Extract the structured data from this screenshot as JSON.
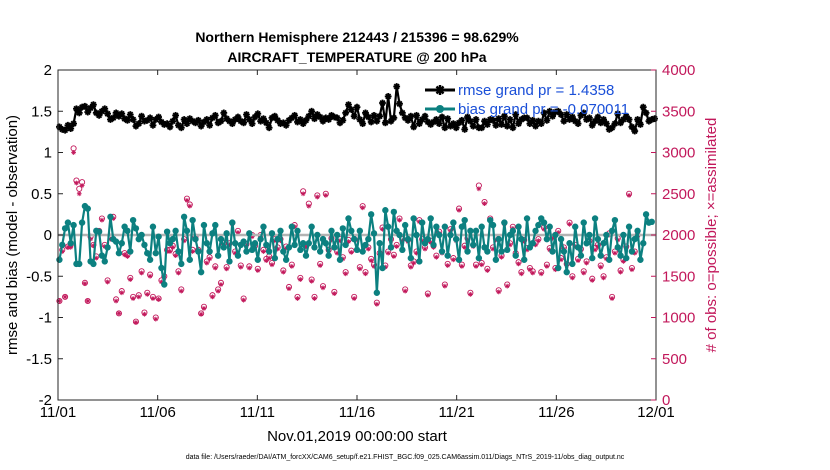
{
  "chart_data": {
    "type": "line",
    "title_line1": "Northern Hemisphere 212443 / 215396 = 98.629%",
    "title_line2": "AIRCRAFT_TEMPERATURE @ 200 hPa",
    "xlabel": "Nov.01,2019 00:00:00 start",
    "ylabel_left": "rmse and bias (model - observation)",
    "ylabel_right": "# of obs: o=possible; ×=assimilated",
    "xlim": [
      0,
      30
    ],
    "ylim_left": [
      -2,
      2
    ],
    "ylim_right": [
      0,
      4000
    ],
    "x_ticks": [
      0,
      5,
      10,
      15,
      20,
      25,
      30
    ],
    "x_tick_labels": [
      "11/01",
      "11/06",
      "11/11",
      "11/16",
      "11/21",
      "11/26",
      "12/01"
    ],
    "y_ticks_left": [
      -2,
      -1.5,
      -1,
      -0.5,
      0,
      0.5,
      1,
      1.5,
      2
    ],
    "y_tick_labels_left": [
      "-2",
      "-1.5",
      "-1",
      "-0.5",
      "0",
      "0.5",
      "1",
      "1.5",
      "2"
    ],
    "y_ticks_right": [
      0,
      500,
      1000,
      1500,
      2000,
      2500,
      3000,
      3500,
      4000
    ],
    "y_tick_labels_right": [
      "0",
      "500",
      "1000",
      "1500",
      "2000",
      "2500",
      "3000",
      "3500",
      "4000"
    ],
    "zero_line": 0,
    "legend": [
      {
        "name": "rmse grand pr = 1.4358",
        "color": "#000000"
      },
      {
        "name": "bias grand pr = -0.070011",
        "color": "#0c8080"
      }
    ],
    "rmse": [
      1.31,
      1.28,
      1.27,
      1.33,
      1.29,
      1.35,
      1.53,
      1.48,
      1.55,
      1.56,
      1.49,
      1.54,
      1.58,
      1.48,
      1.45,
      1.5,
      1.53,
      1.47,
      1.4,
      1.42,
      1.48,
      1.44,
      1.47,
      1.41,
      1.39,
      1.46,
      1.4,
      1.32,
      1.35,
      1.44,
      1.38,
      1.39,
      1.42,
      1.33,
      1.4,
      1.43,
      1.37,
      1.34,
      1.35,
      1.31,
      1.38,
      1.45,
      1.33,
      1.3,
      1.4,
      1.35,
      1.41,
      1.38,
      1.36,
      1.39,
      1.32,
      1.37,
      1.4,
      1.33,
      1.42,
      1.45,
      1.36,
      1.38,
      1.48,
      1.41,
      1.38,
      1.35,
      1.4,
      1.43,
      1.38,
      1.36,
      1.46,
      1.4,
      1.35,
      1.43,
      1.47,
      1.38,
      1.41,
      1.36,
      1.3,
      1.42,
      1.44,
      1.39,
      1.35,
      1.36,
      1.33,
      1.39,
      1.42,
      1.45,
      1.37,
      1.4,
      1.35,
      1.39,
      1.44,
      1.5,
      1.41,
      1.46,
      1.43,
      1.38,
      1.42,
      1.4,
      1.45,
      1.43,
      1.42,
      1.36,
      1.39,
      1.48,
      1.58,
      1.52,
      1.44,
      1.55,
      1.4,
      1.35,
      1.48,
      1.43,
      1.37,
      1.45,
      1.38,
      1.44,
      1.6,
      1.36,
      1.68,
      1.38,
      1.42,
      1.8,
      1.59,
      1.48,
      1.42,
      1.39,
      1.44,
      1.31,
      1.45,
      1.35,
      1.4,
      1.44,
      1.37,
      1.34,
      1.37,
      1.4,
      1.35,
      1.43,
      1.3,
      1.41,
      1.32,
      1.35,
      1.3,
      1.36,
      1.39,
      1.28,
      1.43,
      1.38,
      1.32,
      1.4,
      1.3,
      1.3,
      1.38,
      1.34,
      1.4,
      1.39,
      1.33,
      1.41,
      1.34,
      1.44,
      1.32,
      1.4,
      1.3,
      1.46,
      1.35,
      1.4,
      1.42,
      1.42,
      1.35,
      1.39,
      1.32,
      1.38,
      1.35,
      1.48,
      1.39,
      1.5,
      1.44,
      1.49,
      1.5,
      1.46,
      1.38,
      1.46,
      1.4,
      1.43,
      1.38,
      1.35,
      1.45,
      1.48,
      1.4,
      1.42,
      1.33,
      1.38,
      1.43,
      1.36,
      1.4,
      1.35,
      1.28,
      1.3,
      1.35,
      1.47,
      1.36,
      1.4,
      1.44,
      1.4,
      1.31,
      1.26,
      1.4,
      1.34,
      1.55,
      1.48,
      1.38,
      1.4,
      1.41
    ],
    "bias": [
      -0.3,
      -0.12,
      0.08,
      0.15,
      -0.1,
      0.12,
      -0.35,
      -0.35,
      0.15,
      0.35,
      0.32,
      -0.32,
      -0.35,
      0.05,
      0.04,
      -0.25,
      -0.32,
      -0.15,
      0.22,
      -0.05,
      -0.08,
      -0.22,
      -0.1,
      0.1,
      0.05,
      -0.2,
      0.18,
      0.08,
      -0.05,
      0.0,
      -0.12,
      -0.22,
      -0.3,
      0.1,
      -0.22,
      -0.02,
      -0.4,
      -0.6,
      0.04,
      -0.1,
      -0.05,
      0.05,
      -0.2,
      -0.35,
      0.22,
      0.05,
      -0.3,
      0.18,
      -0.05,
      -0.2,
      -0.45,
      0.12,
      -0.1,
      -0.2,
      0.02,
      0.12,
      -0.25,
      -0.05,
      -0.15,
      0.02,
      -0.32,
      0.15,
      -0.1,
      -0.25,
      -0.12,
      -0.08,
      -0.2,
      0.02,
      -0.18,
      -0.1,
      -0.3,
      -0.05,
      0.1,
      -0.12,
      -0.2,
      0.02,
      -0.28,
      -0.05,
      0.05,
      -0.2,
      -0.3,
      -0.15,
      0.1,
      -0.12,
      0.05,
      -0.18,
      -0.1,
      -0.25,
      -0.1,
      0.1,
      -0.15,
      0.0,
      -0.2,
      -0.05,
      -0.1,
      -0.25,
      0.05,
      -0.15,
      0.0,
      -0.3,
      0.08,
      -0.12,
      0.2,
      0.05,
      -0.05,
      -0.18,
      0.05,
      -0.2,
      -0.12,
      -0.05,
      0.25,
      0.02,
      -0.7,
      -0.1,
      -0.4,
      0.3,
      0.1,
      -0.15,
      0.28,
      0.05,
      0.0,
      -0.18,
      0.12,
      -0.05,
      -0.28,
      0.2,
      0.0,
      -0.32,
      0.15,
      -0.1,
      -0.05,
      0.2,
      -0.12,
      0.1,
      0.0,
      -0.2,
      0.1,
      -0.25,
      0.0,
      0.15,
      -0.05,
      -0.3,
      0.1,
      0.18,
      -0.2,
      0.05,
      -0.12,
      0.05,
      -0.28,
      0.1,
      -0.15,
      -0.2,
      0.18,
      0.12,
      -0.3,
      -0.05,
      -0.2,
      0.15,
      -0.18,
      0.0,
      0.05,
      -0.25,
      0.1,
      -0.05,
      -0.3,
      0.2,
      -0.15,
      -0.1,
      0.05,
      0.12,
      0.2,
      0.15,
      -0.05,
      0.1,
      -0.2,
      0.0,
      -0.4,
      -0.05,
      -0.2,
      -0.45,
      -0.1,
      -0.35,
      0.1,
      -0.15,
      -0.25,
      0.15,
      -0.1,
      0.0,
      -0.28,
      0.2,
      -0.05,
      -0.25,
      -0.1,
      0.0,
      -0.3,
      0.05,
      0.18,
      -0.15,
      -0.25,
      0.0,
      -0.28,
      0.1,
      -0.2,
      -0.05,
      0.05,
      -0.3,
      -0.1,
      0.25,
      0.15,
      0.16
    ],
    "obs_possible": [
      1200,
      1820,
      1250,
      1860,
      1880,
      3050,
      2660,
      2560,
      2640,
      1420,
      1200,
      1980,
      1880,
      1740,
      2050,
      2200,
      1880,
      1450,
      1980,
      2220,
      1220,
      1050,
      1320,
      1780,
      1760,
      1480,
      1250,
      950,
      1270,
      1560,
      1060,
      1300,
      1520,
      1250,
      1000,
      1230,
      1450,
      1500,
      1820,
      1820,
      1870,
      1770,
      1560,
      1340,
      1950,
      2440,
      2370,
      1820,
      1980,
      1820,
      1050,
      1130,
      1680,
      1730,
      1270,
      1620,
      1340,
      1420,
      1900,
      1610,
      1900,
      2150,
      1800,
      2050,
      1630,
      1230,
      1890,
      1620,
      2000,
      1870,
      1590,
      2000,
      1820,
      1710,
      1740,
      1660,
      1950,
      1850,
      1950,
      1570,
      1860,
      1370,
      1640,
      2120,
      1250,
      1480,
      2530,
      1880,
      2380,
      1460,
      1250,
      2480,
      1650,
      1380,
      2500,
      1820,
      1960,
      1310,
      1800,
      1950,
      1730,
      1550,
      1940,
      1810,
      1250,
      1960,
      1610,
      2350,
      1550,
      1850,
      1710,
      1640,
      1180,
      1780,
      2090,
      1630,
      1800,
      1950,
      1760,
      1880,
      2200,
      1950,
      1340,
      1940,
      1630,
      1680,
      1800,
      2180,
      1950,
      1850,
      1290,
      1930,
      1870,
      1750,
      2040,
      1800,
      1400,
      1650,
      2070,
      1720,
      1950,
      2320,
      1640,
      1870,
      1960,
      1300,
      1880,
      1640,
      2600,
      1660,
      2400,
      1590,
      2200,
      1850,
      1960,
      1330,
      1750,
      2150,
      1400,
      1900,
      2100,
      1780,
      1670,
      1550,
      1940,
      1840,
      1600,
      1560,
      1900,
      1950,
      1550,
      2090,
      1640,
      1840,
      1980,
      1600,
      2050,
      1720,
      1850,
      1650,
      2150,
      1500,
      1880,
      1710,
      1830,
      1560,
      1680,
      1930,
      1470,
      1840,
      1880,
      1630,
      1500,
      1730,
      2020,
      1250,
      1800,
      1960,
      1570,
      1700,
      1860,
      2500,
      1600,
      1800,
      2000
    ],
    "obs_assimilated": [
      1200,
      1800,
      1250,
      1850,
      1850,
      3000,
      2630,
      2500,
      2600,
      1410,
      1200,
      1950,
      1870,
      1720,
      2030,
      2180,
      1860,
      1430,
      1950,
      2200,
      1200,
      1050,
      1300,
      1760,
      1740,
      1460,
      1230,
      940,
      1250,
      1540,
      1040,
      1280,
      1500,
      1230,
      980,
      1220,
      1430,
      1480,
      1800,
      1800,
      1850,
      1750,
      1540,
      1320,
      1930,
      2420,
      2350,
      1800,
      1960,
      1800,
      1040,
      1110,
      1660,
      1710,
      1250,
      1600,
      1320,
      1400,
      1880,
      1590,
      1880,
      2130,
      1780,
      2030,
      1610,
      1210,
      1870,
      1600,
      1980,
      1850,
      1570,
      1980,
      1800,
      1690,
      1720,
      1640,
      1930,
      1830,
      1930,
      1550,
      1840,
      1350,
      1620,
      2100,
      1230,
      1460,
      2500,
      1860,
      2350,
      1440,
      1230,
      2460,
      1630,
      1360,
      2480,
      1800,
      1940,
      1290,
      1780,
      1930,
      1710,
      1530,
      1920,
      1790,
      1230,
      1940,
      1590,
      2330,
      1530,
      1830,
      1690,
      1620,
      1160,
      1760,
      2070,
      1610,
      1780,
      1930,
      1740,
      1860,
      2180,
      1930,
      1320,
      1920,
      1610,
      1660,
      1780,
      2160,
      1930,
      1830,
      1270,
      1910,
      1850,
      1730,
      2020,
      1780,
      1380,
      1630,
      2050,
      1700,
      1930,
      2300,
      1620,
      1850,
      1940,
      1280,
      1860,
      1620,
      2560,
      1640,
      2380,
      1570,
      2180,
      1830,
      1940,
      1310,
      1730,
      2130,
      1380,
      1880,
      2080,
      1760,
      1650,
      1530,
      1920,
      1820,
      1580,
      1540,
      1880,
      1930,
      1530,
      2070,
      1620,
      1820,
      1960,
      1580,
      2030,
      1700,
      1830,
      1630,
      2130,
      1480,
      1860,
      1690,
      1810,
      1540,
      1660,
      1910,
      1450,
      1820,
      1860,
      1610,
      1480,
      1710,
      2000,
      1230,
      1780,
      1940,
      1550,
      1680,
      1840,
      2480,
      1580,
      1780,
      1980
    ]
  },
  "footnote": "data file: /Users/raeder/DAI/ATM_forcXX/CAM6_setup/f.e21.FHIST_BGC.f09_025.CAM6assim.011/Diags_NTrS_2019-11/obs_diag_output.nc"
}
